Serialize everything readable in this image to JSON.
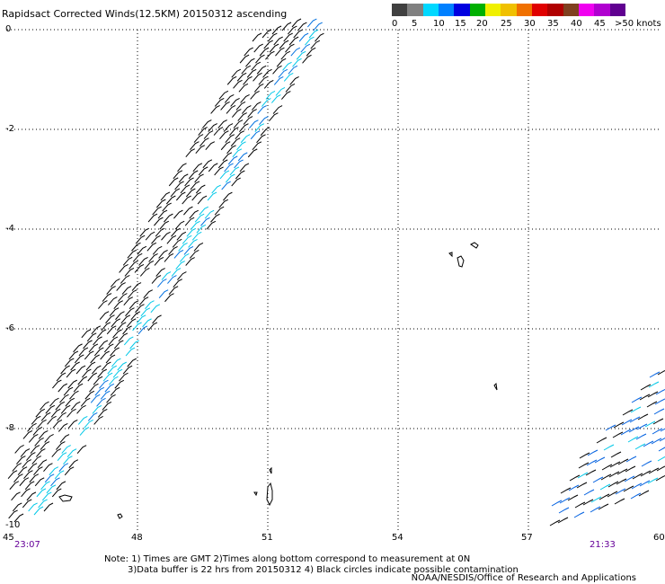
{
  "title": "Rapidsact Corrected Winds(12.5KM) 20150312 ascending",
  "legend": {
    "labels": [
      "0",
      "5",
      "10",
      "15",
      "20",
      "25",
      "30",
      "35",
      "40",
      "45",
      ">50 knots"
    ],
    "colors": [
      "#404040",
      "#808080",
      "#00d8ff",
      "#0080ff",
      "#0000e0",
      "#00b000",
      "#f0f000",
      "#f0c000",
      "#f07000",
      "#e00000",
      "#b00000",
      "#804020",
      "#f000f0",
      "#b000d0",
      "#600090"
    ]
  },
  "axes": {
    "x_labels": [
      "45",
      "48",
      "51",
      "54",
      "57",
      "60"
    ],
    "y_labels": [
      "0",
      "-2",
      "-4",
      "-6",
      "-8",
      "-10"
    ],
    "x_range": [
      45,
      60
    ],
    "y_range": [
      -10,
      0
    ]
  },
  "times": {
    "left": "23:07",
    "right": "21:33"
  },
  "notes": [
    "Note: 1) Times are GMT 2)Times along bottom correspond to measurement at 0N",
    "3)Data buffer is 22 hrs from 20150312 4) Black circles indicate possible contamination"
  ],
  "credit": "NOAA/NESDIS/Office of Research and Applications",
  "colors": {
    "time_label": "#660099",
    "grid": "#000000",
    "barb_default": "#000000"
  }
}
